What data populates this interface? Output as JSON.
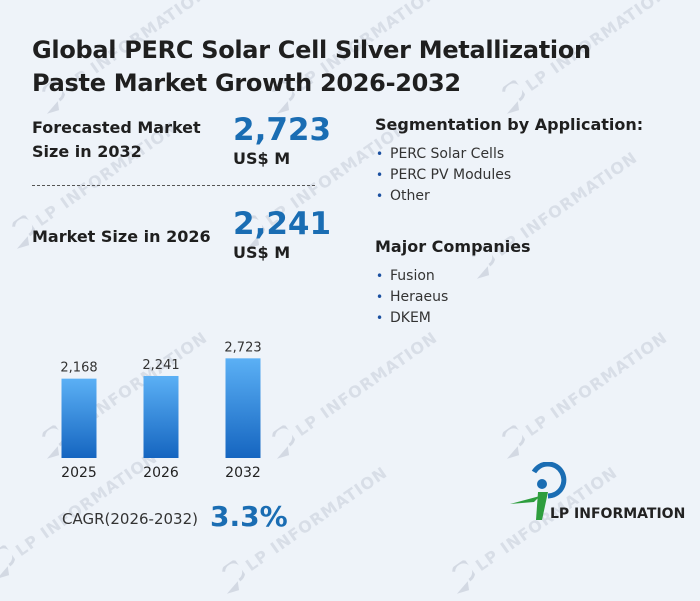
{
  "title": "Global PERC Solar Cell Silver Metallization Paste Market Growth 2026-2032",
  "forecast": {
    "label_line1": "Forecasted Market",
    "label_line2": "Size in 2032",
    "value": "2,723",
    "unit": "US$ M"
  },
  "current": {
    "label": "Market Size in 2026",
    "value": "2,241",
    "unit": "US$ M"
  },
  "segmentation": {
    "heading": "Segmentation by Application:",
    "items": [
      "PERC Solar Cells",
      "PERC PV Modules",
      "Other"
    ]
  },
  "companies": {
    "heading": "Major Companies",
    "items": [
      "Fusion",
      "Heraeus",
      "DKEM"
    ]
  },
  "chart_data": {
    "type": "bar",
    "categories": [
      "2025",
      "2026",
      "2032"
    ],
    "values": [
      2168,
      2241,
      2723
    ],
    "value_labels": [
      "2,168",
      "2,241",
      "2,723"
    ],
    "title": "",
    "xlabel": "",
    "ylabel": "",
    "bar_gradient": [
      "#5bb0f5",
      "#1565c0"
    ]
  },
  "cagr": {
    "label": "CAGR(2026-2032)",
    "value": "3.3%"
  },
  "logo": {
    "text": "LP INFORMATION"
  },
  "watermark": {
    "text": "LP INFORMATION"
  },
  "colors": {
    "accent": "#1a6db3",
    "background": "#eef3f9",
    "logo_green": "#2e9e3e"
  }
}
